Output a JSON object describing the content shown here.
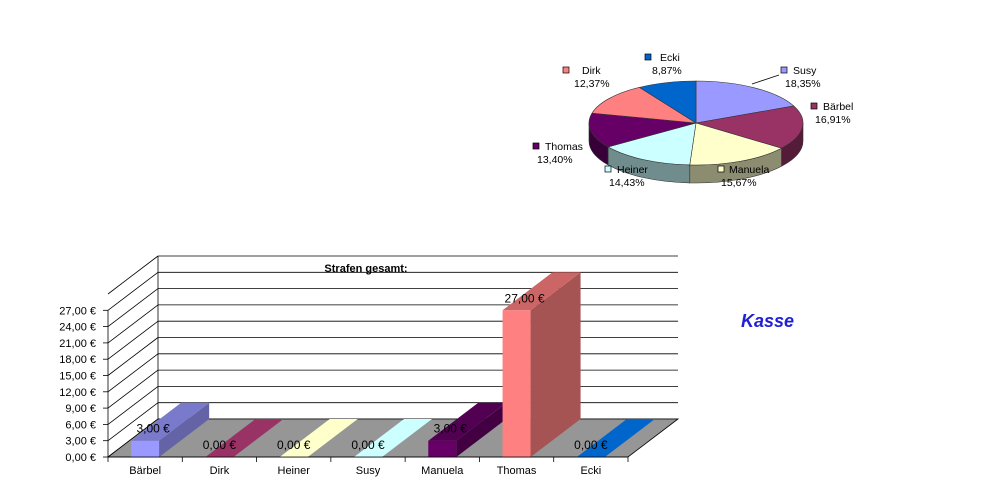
{
  "side_label": "Kasse",
  "colors": {
    "accent": "#1f1fd6"
  },
  "chart_data": [
    {
      "type": "pie",
      "title": "",
      "legend": "labels-around",
      "slices": [
        {
          "label": "Susy",
          "value": "18,35%",
          "pct": 18.35,
          "color": "#9999ff"
        },
        {
          "label": "Bärbel",
          "value": "16,91%",
          "pct": 16.91,
          "color": "#993366"
        },
        {
          "label": "Manuela",
          "value": "15,67%",
          "pct": 15.67,
          "color": "#ffffcc"
        },
        {
          "label": "Heiner",
          "value": "14,43%",
          "pct": 14.43,
          "color": "#ccffff"
        },
        {
          "label": "Thomas",
          "value": "13,40%",
          "pct": 13.4,
          "color": "#660066"
        },
        {
          "label": "Dirk",
          "value": "12,37%",
          "pct": 12.37,
          "color": "#ff8080"
        },
        {
          "label": "Ecki",
          "value": "8,87%",
          "pct": 8.87,
          "color": "#0066cc"
        }
      ]
    },
    {
      "type": "bar",
      "title": "Strafen gesamt:",
      "categories": [
        "Bärbel",
        "Dirk",
        "Heiner",
        "Susy",
        "Manuela",
        "Thomas",
        "Ecki"
      ],
      "values": [
        3,
        0,
        0,
        0,
        3,
        27,
        0
      ],
      "data_labels": [
        "3,00 €",
        "0,00 €",
        "0,00 €",
        "0,00 €",
        "3,00 €",
        "27,00 €",
        "0,00 €"
      ],
      "colors": [
        "#9999ff",
        "#993366",
        "#ffffcc",
        "#ccffff",
        "#660066",
        "#ff8080",
        "#0066cc"
      ],
      "y_ticks": [
        "0,00 €",
        "3,00 €",
        "6,00 €",
        "9,00 €",
        "12,00 €",
        "15,00 €",
        "18,00 €",
        "21,00 €",
        "24,00 €",
        "27,00 €"
      ],
      "ylim": [
        0,
        27
      ],
      "grid": true
    }
  ]
}
